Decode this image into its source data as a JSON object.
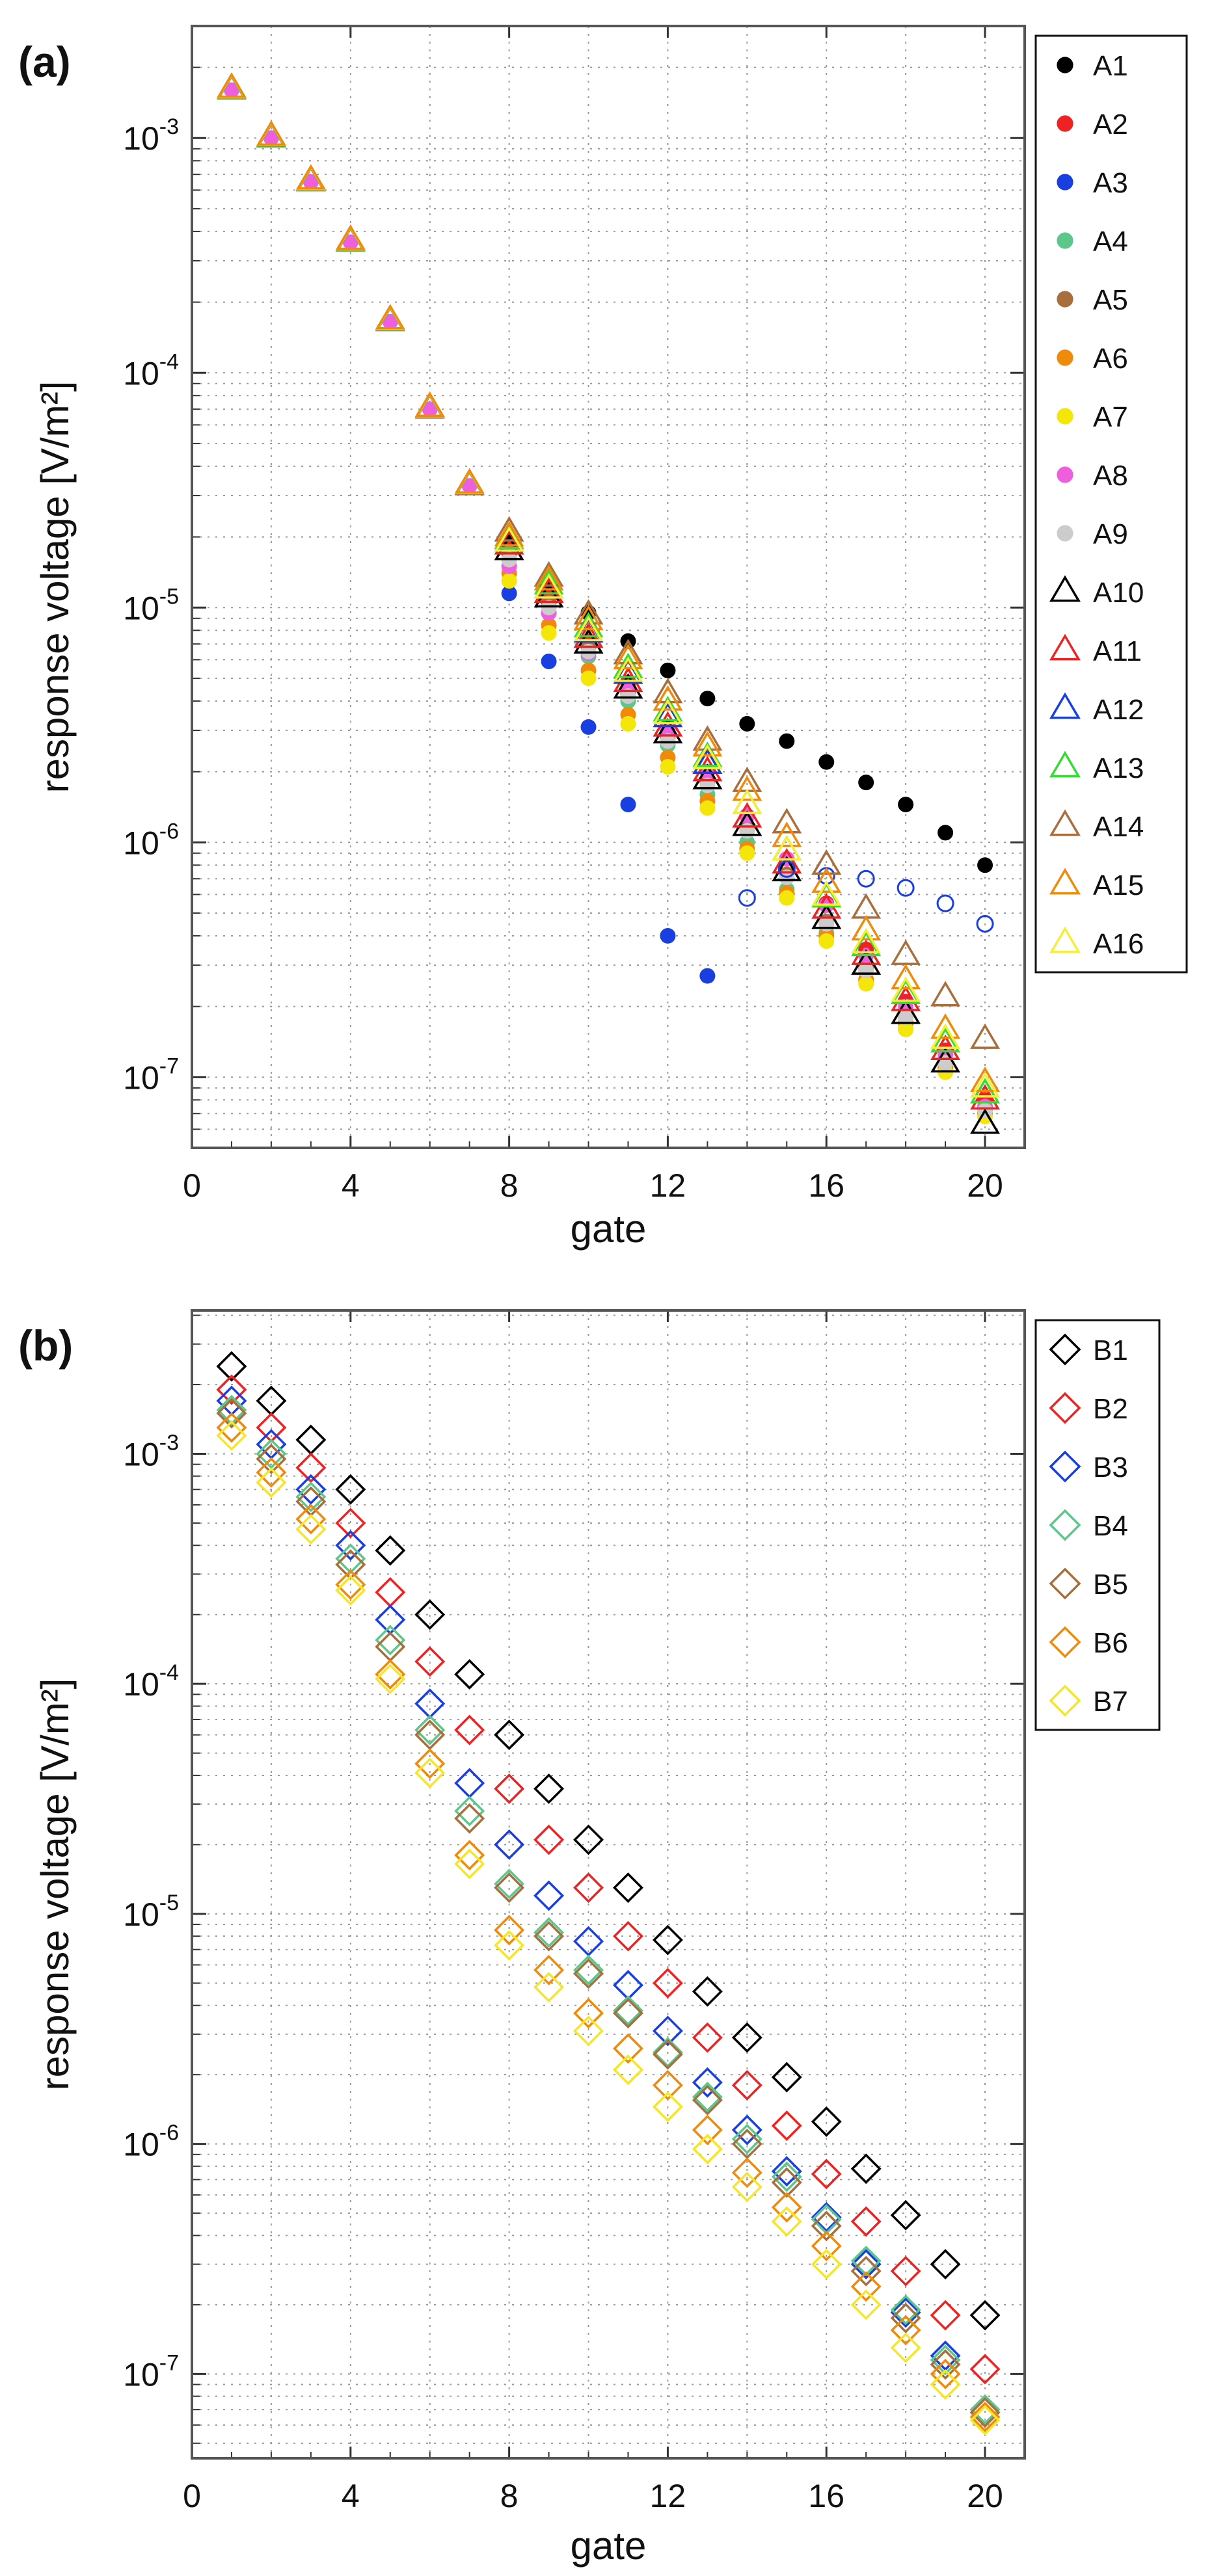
{
  "chart_data": [
    {
      "panel": "(a)",
      "type": "scatter",
      "xlabel": "gate",
      "ylabel": "response voltage [V/m²]",
      "xlim": [
        0,
        21
      ],
      "ylim": [
        5e-08,
        0.003
      ],
      "yscale": "log",
      "grid": true,
      "legend_position": "right",
      "xticks": [
        "0",
        "4",
        "8",
        "12",
        "16",
        "20"
      ],
      "yticks": [
        {
          "base": "10",
          "exp": "-3",
          "value": 0.001
        },
        {
          "base": "10",
          "exp": "-4",
          "value": 0.0001
        },
        {
          "base": "10",
          "exp": "-5",
          "value": 1e-05
        },
        {
          "base": "10",
          "exp": "-6",
          "value": 1e-06
        },
        {
          "base": "10",
          "exp": "-7",
          "value": 1e-07
        }
      ],
      "series": [
        {
          "name": "A1",
          "marker": "filled-circle",
          "color": "#000000",
          "x": [
            8,
            9,
            10,
            11,
            12,
            13,
            14,
            15,
            16,
            17,
            18,
            19,
            20
          ],
          "values": [
            1.9e-05,
            1.3e-05,
            9.5e-06,
            7.2e-06,
            5.4e-06,
            4.1e-06,
            3.2e-06,
            2.7e-06,
            2.2e-06,
            1.8e-06,
            1.45e-06,
            1.1e-06,
            8e-07
          ]
        },
        {
          "name": "A2",
          "marker": "filled-circle",
          "color": "#ee2222",
          "x": [
            8,
            9,
            10,
            11,
            12,
            13,
            14,
            15,
            16,
            17,
            18,
            19,
            20
          ],
          "values": [
            1.8e-05,
            1.1e-05,
            7.2e-06,
            4.8e-06,
            3.1e-06,
            2e-06,
            1.3e-06,
            8.5e-07,
            5.5e-07,
            3.5e-07,
            2.1e-07,
            1.3e-07,
            8e-08
          ]
        },
        {
          "name": "A3",
          "marker": "filled-circle",
          "color": "#1a3fe0",
          "x": [
            8,
            9,
            10,
            11,
            12,
            13
          ],
          "values": [
            1.15e-05,
            5.9e-06,
            3.1e-06,
            1.45e-06,
            4e-07,
            2.7e-07
          ]
        },
        {
          "name": "A4",
          "marker": "filled-circle",
          "color": "#5cc78a",
          "x": [
            8,
            9,
            10,
            11,
            12,
            13,
            14,
            15,
            16,
            17,
            18,
            19,
            20
          ],
          "values": [
            1.6e-05,
            9.5e-06,
            6.2e-06,
            4e-06,
            2.6e-06,
            1.6e-06,
            1e-06,
            6.3e-07,
            4.1e-07,
            2.6e-07,
            1.6e-07,
            1.1e-07,
            7e-08
          ]
        },
        {
          "name": "A5",
          "marker": "filled-circle",
          "color": "#a86f3d",
          "x": [
            8,
            9,
            10,
            11,
            12,
            13,
            14,
            15,
            16,
            17,
            18,
            19,
            20
          ],
          "values": [
            1.7e-05,
            1.05e-05,
            6.8e-06,
            4.3e-06,
            2.8e-06,
            1.8e-06,
            1.15e-06,
            7.3e-07,
            4.6e-07,
            2.9e-07,
            1.8e-07,
            1.15e-07,
            7.3e-08
          ]
        },
        {
          "name": "A6",
          "marker": "filled-circle",
          "color": "#f08a0a",
          "x": [
            8,
            9,
            10,
            11,
            12,
            13,
            14,
            15,
            16,
            17,
            18,
            19,
            20
          ],
          "values": [
            1.4e-05,
            8.4e-06,
            5.4e-06,
            3.5e-06,
            2.3e-06,
            1.5e-06,
            9.4e-07,
            6.1e-07,
            4e-07,
            2.6e-07,
            1.7e-07,
            1.1e-07,
            7e-08
          ]
        },
        {
          "name": "A7",
          "marker": "filled-circle",
          "color": "#f5e60a",
          "x": [
            8,
            9,
            10,
            11,
            12,
            13,
            14,
            15,
            16,
            17,
            18,
            19,
            20
          ],
          "values": [
            1.3e-05,
            7.8e-06,
            5e-06,
            3.2e-06,
            2.1e-06,
            1.4e-06,
            9e-07,
            5.8e-07,
            3.8e-07,
            2.5e-07,
            1.6e-07,
            1.05e-07,
            6.8e-08
          ]
        },
        {
          "name": "A8",
          "marker": "filled-circle",
          "color": "#f05ee0",
          "x": [
            8,
            9,
            10,
            11,
            12,
            13,
            14,
            15,
            16,
            17,
            18,
            19,
            20
          ],
          "values": [
            1.5e-05,
            9.5e-06,
            6.4e-06,
            4.5e-06,
            3e-06,
            2e-06,
            1.3e-06,
            8.5e-07,
            5.4e-07,
            3.3e-07,
            2e-07,
            1.25e-07,
            7.5e-08
          ]
        },
        {
          "name": "A9",
          "marker": "filled-circle",
          "color": "#cccccc",
          "x": [
            8,
            9,
            10,
            11,
            12,
            13,
            14,
            15,
            16,
            17,
            18,
            19,
            20
          ],
          "values": [
            1.6e-05,
            1e-05,
            6.5e-06,
            4.2e-06,
            2.7e-06,
            1.75e-06,
            1.12e-06,
            7.1e-07,
            4.5e-07,
            2.85e-07,
            1.8e-07,
            1.15e-07,
            7.2e-08
          ]
        },
        {
          "name": "A10",
          "marker": "open-triangle",
          "color": "#000000",
          "x": [
            8,
            9,
            10,
            11,
            12,
            13,
            14,
            15,
            16,
            17,
            18,
            19,
            20
          ],
          "values": [
            1.75e-05,
            1.1e-05,
            7e-06,
            4.5e-06,
            2.9e-06,
            1.85e-06,
            1.17e-06,
            7.5e-07,
            4.7e-07,
            3e-07,
            1.85e-07,
            1.15e-07,
            6.3e-08
          ]
        },
        {
          "name": "A11",
          "marker": "open-triangle",
          "color": "#ee2222",
          "x": [
            8,
            9,
            10,
            11,
            12,
            13,
            14,
            15,
            16,
            17,
            18,
            19,
            20
          ],
          "values": [
            1.85e-05,
            1.15e-05,
            7.4e-06,
            4.8e-06,
            3.1e-06,
            2e-06,
            1.27e-06,
            8.1e-07,
            5.2e-07,
            3.3e-07,
            2.1e-07,
            1.3e-07,
            8e-08
          ]
        },
        {
          "name": "A12",
          "marker": "open-triangle",
          "color": "#1a3fe0",
          "x": [
            8,
            9,
            10,
            11,
            12,
            13,
            14,
            15,
            16,
            17,
            18,
            19,
            20
          ],
          "values": [
            1.9e-05,
            1.2e-05,
            7.8e-06,
            5.2e-06,
            3.4e-06,
            2.15e-06,
            5.8e-07,
            7.7e-07,
            7.2e-07,
            7e-07,
            6.4e-07,
            5.5e-07,
            4.5e-07
          ]
        },
        {
          "name": "A13",
          "marker": "open-triangle",
          "color": "#33dd33",
          "x": [
            8,
            9,
            10,
            11,
            12,
            13,
            14,
            15,
            16,
            17,
            18,
            19,
            20
          ],
          "values": [
            1.95e-05,
            1.25e-05,
            8.2e-06,
            5.5e-06,
            3.6e-06,
            2.3e-06,
            1.45e-06,
            9.2e-07,
            5.8e-07,
            3.6e-07,
            2.25e-07,
            1.4e-07,
            8.5e-08
          ]
        },
        {
          "name": "A14",
          "marker": "open-triangle",
          "color": "#a86f3d",
          "x": [
            8,
            9,
            10,
            11,
            12,
            13,
            14,
            15,
            16,
            17,
            18,
            19,
            20
          ],
          "values": [
            2.1e-05,
            1.35e-05,
            9.3e-06,
            6.3e-06,
            4.3e-06,
            2.7e-06,
            1.8e-06,
            1.2e-06,
            8e-07,
            5.2e-07,
            3.3e-07,
            2.2e-07,
            1.45e-07
          ]
        },
        {
          "name": "A15",
          "marker": "open-triangle",
          "color": "#f08a0a",
          "x": [
            8,
            9,
            10,
            11,
            12,
            13,
            14,
            15,
            16,
            17,
            18,
            19,
            20
          ],
          "values": [
            2e-05,
            1.3e-05,
            8.8e-06,
            6e-06,
            4e-06,
            2.55e-06,
            1.65e-06,
            1.05e-06,
            6.7e-07,
            4.2e-07,
            2.6e-07,
            1.6e-07,
            9.5e-08
          ]
        },
        {
          "name": "A16",
          "marker": "open-triangle",
          "color": "#f5ee3a",
          "x": [
            1,
            2,
            3,
            4,
            5,
            6,
            7,
            8,
            9,
            10,
            11,
            12,
            13,
            14,
            15,
            16,
            17,
            18,
            19,
            20
          ],
          "values": [
            0.0016,
            0.001,
            0.00065,
            0.00036,
            0.000165,
            7.2e-05,
            3.5e-05,
            1.9e-05,
            1.2e-05,
            7.9e-06,
            5.3e-06,
            3.5e-06,
            2.25e-06,
            1.45e-06,
            9.2e-07,
            5.9e-07,
            3.7e-07,
            2.3e-07,
            1.45e-07,
            9e-08
          ]
        }
      ],
      "shared_early": {
        "x": [
          1,
          2,
          3,
          4,
          5,
          6,
          7
        ],
        "values": [
          0.0016,
          0.001,
          0.00065,
          0.00036,
          0.000165,
          7e-05,
          3.3e-05
        ]
      }
    },
    {
      "panel": "(b)",
      "type": "scatter",
      "xlabel": "gate",
      "ylabel": "response voltage [V/m²]",
      "xlim": [
        0,
        21
      ],
      "ylim": [
        4.3e-08,
        0.0042
      ],
      "yscale": "log",
      "grid": true,
      "legend_position": "right",
      "xticks": [
        "0",
        "4",
        "8",
        "12",
        "16",
        "20"
      ],
      "yticks": [
        {
          "base": "10",
          "exp": "-3",
          "value": 0.001
        },
        {
          "base": "10",
          "exp": "-4",
          "value": 0.0001
        },
        {
          "base": "10",
          "exp": "-5",
          "value": 1e-05
        },
        {
          "base": "10",
          "exp": "-6",
          "value": 1e-06
        },
        {
          "base": "10",
          "exp": "-7",
          "value": 1e-07
        }
      ],
      "series": [
        {
          "name": "B1",
          "marker": "open-diamond",
          "color": "#000000",
          "x": [
            1,
            2,
            3,
            4,
            5,
            6,
            7,
            8,
            9,
            10,
            11,
            12,
            13,
            14,
            15,
            16,
            17,
            18,
            19,
            20
          ],
          "values": [
            0.0024,
            0.0017,
            0.00115,
            0.0007,
            0.00038,
            0.0002,
            0.00011,
            6e-05,
            3.5e-05,
            2.1e-05,
            1.3e-05,
            7.7e-06,
            4.6e-06,
            2.9e-06,
            1.95e-06,
            1.25e-06,
            7.8e-07,
            4.9e-07,
            3e-07,
            1.8e-07
          ]
        },
        {
          "name": "B2",
          "marker": "open-diamond",
          "color": "#ee2222",
          "x": [
            1,
            2,
            3,
            4,
            5,
            6,
            7,
            8,
            9,
            10,
            11,
            12,
            13,
            14,
            15,
            16,
            17,
            18,
            19,
            20
          ],
          "values": [
            0.0019,
            0.0013,
            0.00087,
            0.0005,
            0.00025,
            0.000125,
            6.3e-05,
            3.5e-05,
            2.1e-05,
            1.3e-05,
            8e-06,
            5e-06,
            2.9e-06,
            1.8e-06,
            1.2e-06,
            7.4e-07,
            4.6e-07,
            2.8e-07,
            1.8e-07,
            1.05e-07
          ]
        },
        {
          "name": "B3",
          "marker": "open-diamond",
          "color": "#1a3fe0",
          "x": [
            1,
            2,
            3,
            4,
            5,
            6,
            7,
            8,
            9,
            10,
            11,
            12,
            13,
            14,
            15,
            16,
            17,
            18,
            19,
            20
          ],
          "values": [
            0.0017,
            0.0011,
            0.0007,
            0.0004,
            0.00019,
            8.2e-05,
            3.7e-05,
            2e-05,
            1.2e-05,
            7.6e-06,
            4.9e-06,
            3.1e-06,
            1.85e-06,
            1.15e-06,
            7.6e-07,
            4.8e-07,
            3e-07,
            1.85e-07,
            1.2e-07,
            7e-08
          ]
        },
        {
          "name": "B4",
          "marker": "open-diamond",
          "color": "#5cc78a",
          "x": [
            1,
            2,
            3,
            4,
            5,
            6,
            7,
            8,
            9,
            10,
            11,
            12,
            13,
            14,
            15,
            16,
            17,
            18,
            19,
            20
          ],
          "values": [
            0.00155,
            0.001,
            0.00065,
            0.00035,
            0.000155,
            6.3e-05,
            2.8e-05,
            1.35e-05,
            8.3e-06,
            5.7e-06,
            3.8e-06,
            2.5e-06,
            1.6e-06,
            1.05e-06,
            7.2e-07,
            4.7e-07,
            3.1e-07,
            1.9e-07,
            1.15e-07,
            7e-08
          ]
        },
        {
          "name": "B5",
          "marker": "open-diamond",
          "color": "#a86f3d",
          "x": [
            1,
            2,
            3,
            4,
            5,
            6,
            7,
            8,
            9,
            10,
            11,
            12,
            13,
            14,
            15,
            16,
            17,
            18,
            19,
            20
          ],
          "values": [
            0.0015,
            0.00095,
            0.00062,
            0.00033,
            0.000145,
            6e-05,
            2.6e-05,
            1.3e-05,
            8e-06,
            5.5e-06,
            3.7e-06,
            2.45e-06,
            1.55e-06,
            1e-06,
            6.8e-07,
            4.4e-07,
            2.8e-07,
            1.75e-07,
            1.1e-07,
            6.8e-08
          ]
        },
        {
          "name": "B6",
          "marker": "open-diamond",
          "color": "#f08a0a",
          "x": [
            1,
            2,
            3,
            4,
            5,
            6,
            7,
            8,
            9,
            10,
            11,
            12,
            13,
            14,
            15,
            16,
            17,
            18,
            19,
            20
          ],
          "values": [
            0.0013,
            0.00083,
            0.00052,
            0.00027,
            0.00011,
            4.5e-05,
            1.8e-05,
            8.5e-06,
            5.7e-06,
            3.7e-06,
            2.6e-06,
            1.8e-06,
            1.15e-06,
            7.5e-07,
            5.3e-07,
            3.6e-07,
            2.4e-07,
            1.55e-07,
            1e-07,
            6.5e-08
          ]
        },
        {
          "name": "B7",
          "marker": "open-diamond",
          "color": "#f5e62a",
          "x": [
            1,
            2,
            3,
            4,
            5,
            6,
            7,
            8,
            9,
            10,
            11,
            12,
            13,
            14,
            15,
            16,
            17,
            18,
            19,
            20
          ],
          "values": [
            0.0012,
            0.00075,
            0.00047,
            0.000255,
            0.000105,
            4.1e-05,
            1.65e-05,
            7.3e-06,
            4.8e-06,
            3.1e-06,
            2.1e-06,
            1.45e-06,
            9.5e-07,
            6.5e-07,
            4.6e-07,
            3e-07,
            2e-07,
            1.3e-07,
            9e-08,
            6.3e-08
          ]
        }
      ]
    }
  ]
}
